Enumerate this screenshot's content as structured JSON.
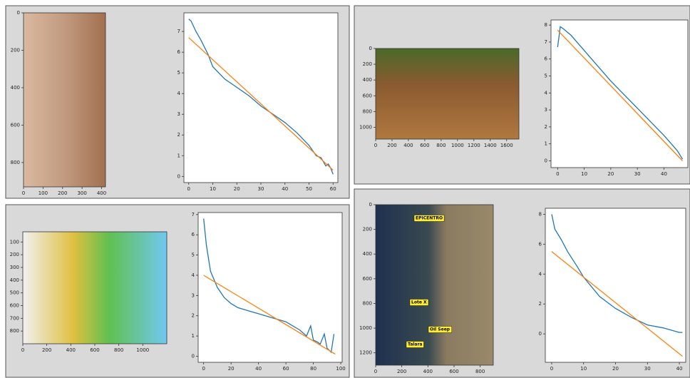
{
  "chart_data": [
    {
      "type": "image",
      "xlim": [
        0,
        420
      ],
      "ylim": [
        930,
        0
      ],
      "xticks": [
        0,
        100,
        200,
        300,
        400
      ],
      "yticks": [
        0,
        200,
        400,
        600,
        800
      ]
    },
    {
      "type": "line",
      "xlim": [
        -2,
        62
      ],
      "ylim": [
        -0.3,
        7.9
      ],
      "xticks": [
        0,
        10,
        20,
        30,
        40,
        50,
        60
      ],
      "yticks": [
        0,
        1,
        2,
        3,
        4,
        5,
        6,
        7
      ],
      "series": [
        {
          "color": "#1f77b4",
          "x": [
            0,
            1,
            3,
            5,
            8,
            10,
            15,
            20,
            25,
            30,
            35,
            40,
            45,
            50,
            53,
            55,
            57,
            58,
            59,
            60
          ],
          "values": [
            7.6,
            7.5,
            7.0,
            6.6,
            5.9,
            5.3,
            4.7,
            4.3,
            3.9,
            3.4,
            3.0,
            2.6,
            2.1,
            1.5,
            1.0,
            0.9,
            0.5,
            0.6,
            0.4,
            0.1
          ]
        },
        {
          "color": "#ff7f0e",
          "x": [
            0,
            60
          ],
          "values": [
            6.7,
            0.3
          ]
        }
      ]
    },
    {
      "type": "image",
      "xlim": [
        0,
        1750
      ],
      "ylim": [
        1150,
        0
      ],
      "xticks": [
        0,
        200,
        400,
        600,
        800,
        1000,
        1200,
        1400,
        1600
      ],
      "yticks": [
        0,
        200,
        400,
        600,
        800,
        1000
      ]
    },
    {
      "type": "line",
      "xlim": [
        -2.5,
        49
      ],
      "ylim": [
        -0.4,
        8.3
      ],
      "xticks": [
        0,
        10,
        20,
        30,
        40
      ],
      "yticks": [
        0,
        1,
        2,
        3,
        4,
        5,
        6,
        7,
        8
      ],
      "series": [
        {
          "color": "#1f77b4",
          "x": [
            0,
            1,
            2,
            5,
            10,
            15,
            20,
            25,
            30,
            35,
            40,
            45,
            47
          ],
          "values": [
            6.7,
            7.9,
            7.8,
            7.4,
            6.5,
            5.6,
            4.7,
            3.9,
            3.1,
            2.3,
            1.5,
            0.6,
            0.1
          ]
        },
        {
          "color": "#ff7f0e",
          "x": [
            0,
            47
          ],
          "values": [
            7.7,
            0.0
          ]
        }
      ]
    },
    {
      "type": "image",
      "xlim": [
        0,
        1200
      ],
      "ylim": [
        900,
        20
      ],
      "xticks": [
        0,
        200,
        400,
        600,
        800,
        1000
      ],
      "yticks": [
        100,
        200,
        300,
        400,
        500,
        600,
        700,
        800
      ]
    },
    {
      "type": "line",
      "xlim": [
        -4,
        101
      ],
      "ylim": [
        -0.3,
        7.1
      ],
      "xticks": [
        0,
        20,
        40,
        60,
        80,
        100
      ],
      "yticks": [
        0,
        1,
        2,
        3,
        4,
        5,
        6,
        7
      ],
      "series": [
        {
          "color": "#1f77b4",
          "x": [
            0,
            2,
            5,
            10,
            15,
            20,
            25,
            30,
            35,
            40,
            45,
            50,
            55,
            60,
            65,
            70,
            75,
            78,
            80,
            83,
            85,
            88,
            90,
            93,
            95
          ],
          "values": [
            6.8,
            5.5,
            4.2,
            3.4,
            2.9,
            2.6,
            2.4,
            2.3,
            2.2,
            2.1,
            2.0,
            1.9,
            1.8,
            1.7,
            1.5,
            1.3,
            1.0,
            1.5,
            0.8,
            0.7,
            0.6,
            1.1,
            0.4,
            0.2,
            1.1
          ]
        },
        {
          "color": "#ff7f0e",
          "x": [
            0,
            96
          ],
          "values": [
            4.0,
            0.1
          ]
        }
      ]
    },
    {
      "type": "image",
      "xlim": [
        0,
        900
      ],
      "ylim": [
        1300,
        0
      ],
      "xticks": [
        0,
        200,
        400,
        600,
        800
      ],
      "yticks": [
        0,
        200,
        400,
        600,
        800,
        1000,
        1200
      ],
      "annotations": [
        "EPICENTRO",
        "Lote X",
        "Oil Seep",
        "Talara"
      ]
    },
    {
      "type": "line",
      "xlim": [
        -2,
        42
      ],
      "ylim": [
        -1.9,
        8.4
      ],
      "xticks": [
        0,
        10,
        20,
        30,
        40
      ],
      "yticks": [
        0,
        2,
        4,
        6,
        8
      ],
      "series": [
        {
          "color": "#1f77b4",
          "x": [
            0,
            1,
            3,
            5,
            8,
            10,
            15,
            20,
            25,
            30,
            35,
            40,
            41
          ],
          "values": [
            8.0,
            7.0,
            6.3,
            5.5,
            4.5,
            3.8,
            2.5,
            1.7,
            1.1,
            0.6,
            0.4,
            0.1,
            0.1
          ]
        },
        {
          "color": "#ff7f0e",
          "x": [
            0,
            41
          ],
          "values": [
            5.5,
            -1.5
          ]
        }
      ]
    }
  ]
}
